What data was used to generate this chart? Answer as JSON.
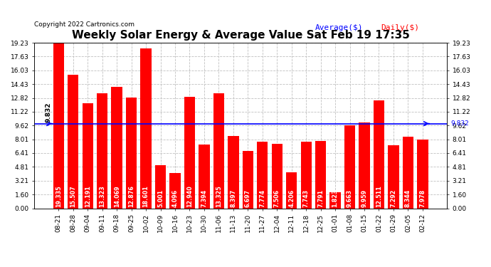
{
  "title": "Weekly Solar Energy & Average Value Sat Feb 19 17:35",
  "copyright": "Copyright 2022 Cartronics.com",
  "legend_avg": "Average($)",
  "legend_daily": "Daily($)",
  "categories": [
    "08-21",
    "08-28",
    "09-04",
    "09-11",
    "09-18",
    "09-25",
    "10-02",
    "10-09",
    "10-16",
    "10-23",
    "10-30",
    "11-06",
    "11-13",
    "11-20",
    "11-27",
    "12-04",
    "12-11",
    "12-18",
    "12-25",
    "01-01",
    "01-08",
    "01-15",
    "01-22",
    "01-29",
    "02-05",
    "02-12"
  ],
  "values": [
    19.335,
    15.507,
    12.191,
    13.323,
    14.069,
    12.876,
    18.601,
    5.001,
    4.096,
    12.94,
    7.394,
    13.325,
    8.397,
    6.697,
    7.774,
    7.506,
    4.206,
    7.743,
    7.791,
    1.823,
    9.663,
    9.959,
    12.511,
    7.292,
    8.344,
    7.978
  ],
  "average": 9.832,
  "bar_color": "#ff0000",
  "avg_line_color": "#0000ff",
  "avg_label_color": "#0000ff",
  "daily_label_color": "#ff0000",
  "background_color": "#ffffff",
  "grid_color": "#c0c0c0",
  "yticks": [
    0.0,
    1.6,
    3.21,
    4.81,
    6.41,
    8.01,
    9.62,
    11.22,
    12.82,
    14.43,
    16.03,
    17.63,
    19.23
  ],
  "bar_width": 0.75,
  "avg_annotation": "9.832",
  "title_fontsize": 11,
  "tick_fontsize": 6.5,
  "value_fontsize": 5.8,
  "copyright_fontsize": 6.5,
  "legend_fontsize": 8
}
